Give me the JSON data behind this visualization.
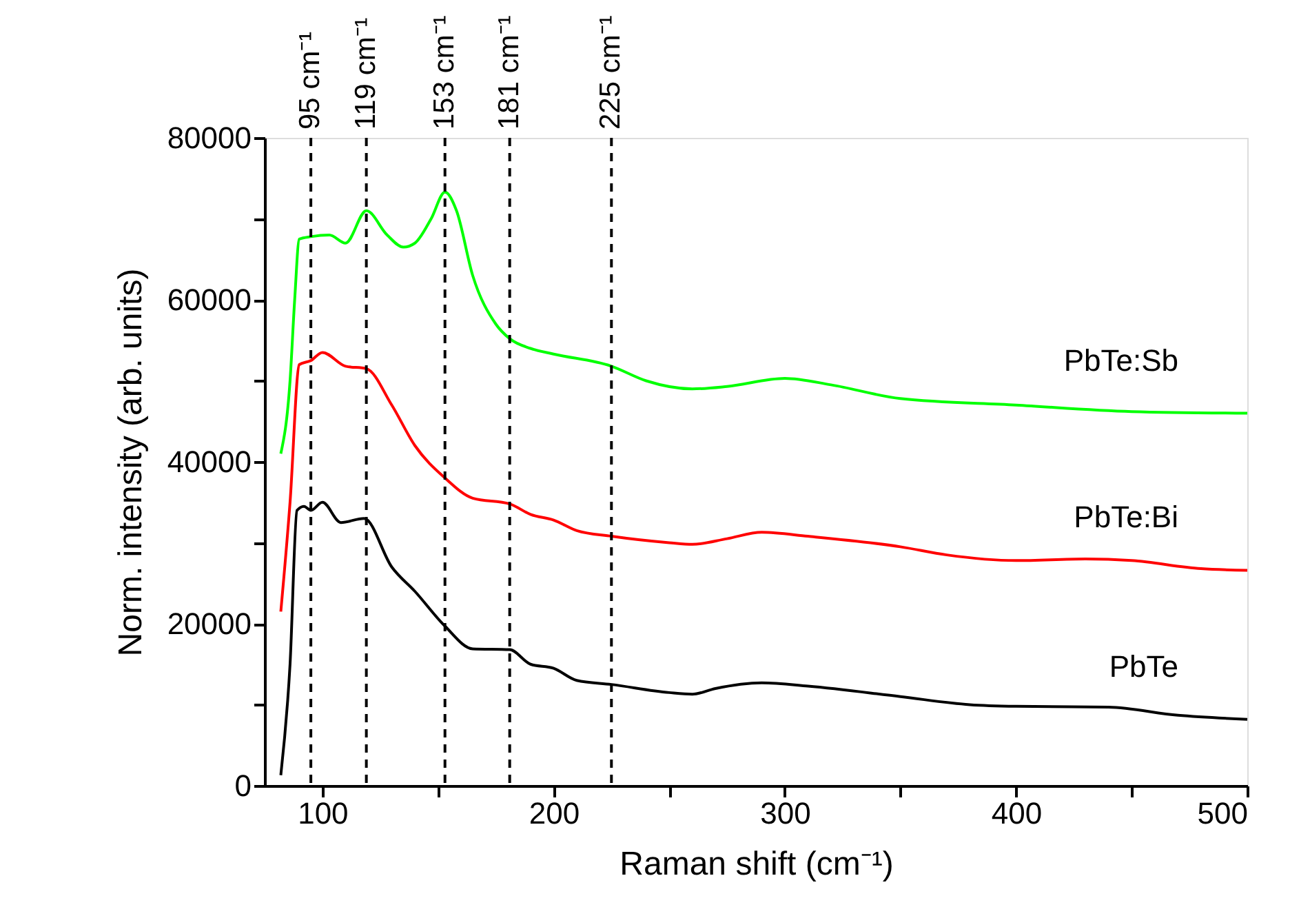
{
  "chart_data": {
    "type": "line",
    "xlabel": "Raman shift (cm⁻¹)",
    "ylabel": "Norm. intensity (arb. units)",
    "xlim": [
      75,
      500
    ],
    "ylim": [
      0,
      80000
    ],
    "xticks": [
      100,
      {
        "value": 150,
        "label": null
      },
      200,
      {
        "value": 250,
        "label": null
      },
      300,
      {
        "value": 350,
        "label": null
      },
      400,
      {
        "value": 450,
        "label": null
      },
      500
    ],
    "yticks": [
      0,
      {
        "value": 10000,
        "label": null
      },
      20000,
      {
        "value": 30000,
        "label": null
      },
      40000,
      {
        "value": 50000,
        "label": null
      },
      60000,
      {
        "value": 70000,
        "label": null
      },
      80000
    ],
    "grid": false,
    "legend": false,
    "marker": "none",
    "line_style": "solid",
    "series": [
      {
        "name": "PbTe",
        "color": "#000000",
        "x": [
          82,
          86,
          89,
          92,
          95,
          100,
          108,
          118,
          130,
          140,
          153,
          165,
          181,
          190,
          200,
          210,
          225,
          250,
          260,
          270,
          290,
          310,
          350,
          380,
          400,
          440,
          470,
          500
        ],
        "values": [
          1300,
          15000,
          34000,
          34500,
          34000,
          35000,
          32500,
          33000,
          27000,
          24000,
          19700,
          16900,
          16800,
          15000,
          14500,
          13000,
          12500,
          11500,
          11300,
          12000,
          12700,
          12300,
          11000,
          10000,
          9800,
          9700,
          8700,
          8200
        ]
      },
      {
        "name": "PbTe:Bi",
        "color": "#ff0000",
        "x": [
          82,
          86,
          90,
          95,
          100,
          110,
          119,
          130,
          140,
          153,
          165,
          181,
          190,
          200,
          210,
          225,
          250,
          260,
          275,
          290,
          310,
          350,
          370,
          400,
          430,
          450,
          480,
          500
        ],
        "values": [
          21500,
          35000,
          52000,
          52500,
          53500,
          51800,
          51500,
          47000,
          42000,
          38000,
          35500,
          34800,
          33500,
          32800,
          31500,
          30800,
          30000,
          29800,
          30500,
          31300,
          30800,
          29500,
          28500,
          27800,
          28000,
          27800,
          26800,
          26600
        ]
      },
      {
        "name": "PbTe:Sb",
        "color": "#00ff00",
        "x": [
          82,
          86,
          88,
          90,
          95,
          103,
          110,
          119,
          128,
          135,
          140,
          147,
          153,
          158,
          165,
          175,
          181,
          190,
          200,
          225,
          240,
          260,
          275,
          300,
          320,
          350,
          400,
          450,
          500
        ],
        "values": [
          41000,
          50000,
          60000,
          67500,
          67800,
          68000,
          67000,
          71000,
          68000,
          66500,
          67000,
          70000,
          73300,
          71000,
          63000,
          57000,
          55200,
          54000,
          53300,
          51800,
          50000,
          49000,
          49300,
          50300,
          49500,
          47800,
          47000,
          46200,
          46000
        ]
      }
    ],
    "ref_lines": [
      {
        "axis": "x",
        "value": 95,
        "label": "95 cm⁻¹",
        "color": "#000000",
        "line_style": "dashed"
      },
      {
        "axis": "x",
        "value": 119,
        "label": "119 cm⁻¹",
        "color": "#000000",
        "line_style": "dashed"
      },
      {
        "axis": "x",
        "value": 153,
        "label": "153 cm⁻¹",
        "color": "#000000",
        "line_style": "dashed"
      },
      {
        "axis": "x",
        "value": 181,
        "label": "181 cm⁻¹",
        "color": "#000000",
        "line_style": "dashed"
      },
      {
        "axis": "x",
        "value": 225,
        "label": "225 cm⁻¹",
        "color": "#000000",
        "line_style": "dashed"
      }
    ]
  }
}
